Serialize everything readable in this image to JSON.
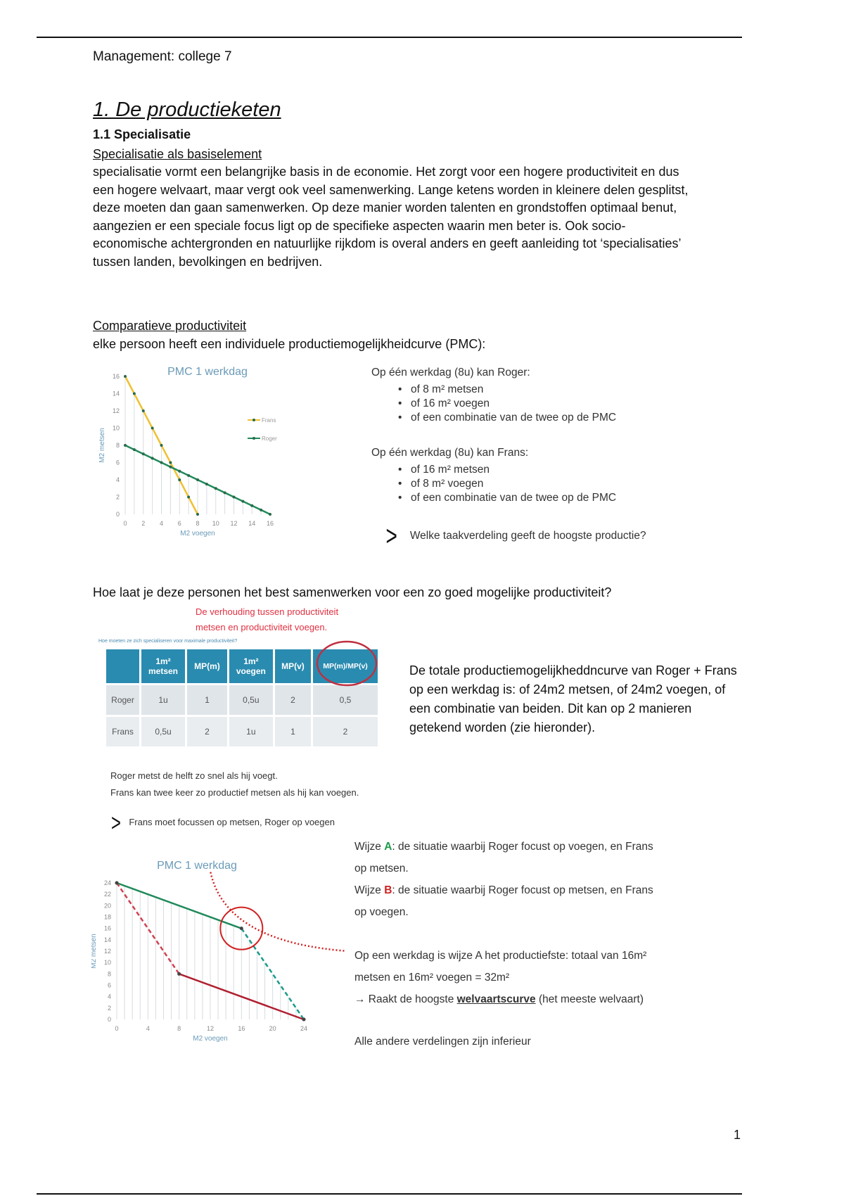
{
  "header": {
    "title": "Management: college 7"
  },
  "section": {
    "title": "1. De productieketen",
    "subtitle": "1.1 Specialisatie"
  },
  "specialisatie": {
    "heading": "Specialisatie als basiselement",
    "body": "specialisatie vormt een belangrijke basis in de economie. Het zorgt voor een hogere productiviteit en dus een hogere welvaart, maar vergt ook veel samenwerking. Lange ketens worden in kleinere delen gesplitst, deze moeten dan gaan samenwerken. Op deze manier worden talenten en grondstoffen optimaal benut, aangezien er een speciale focus ligt op de specifieke aspecten waarin men beter is. Ook socio-economische achtergronden en natuurlijke rijkdom is overal anders en geeft aanleiding tot ‘specialisaties’ tussen landen, bevolkingen en bedrijven."
  },
  "comparatief": {
    "heading": "Comparatieve productiviteit",
    "intro": "elke persoon heeft een individuele productiemogelijkheidcurve (PMC):",
    "roger": {
      "title": "Op één werkdag (8u) kan Roger:",
      "items": [
        "of 8 m² metsen",
        "of 16 m² voegen",
        "of een combinatie van de twee op de PMC"
      ]
    },
    "frans": {
      "title": "Op één werkdag (8u) kan Frans:",
      "items": [
        "of 16 m² metsen",
        "of 8 m² voegen",
        "of een combinatie van de twee op de PMC"
      ]
    },
    "question": "Welke taakverdeling geeft de hoogste productie?"
  },
  "chart_data": [
    {
      "type": "line",
      "title": "PMC 1 werkdag",
      "xlabel": "M2 voegen",
      "ylabel": "M2 metsen",
      "xlim": [
        0,
        16
      ],
      "ylim": [
        0,
        16
      ],
      "xticks": [
        "0",
        "2",
        "4",
        "6",
        "8",
        "10",
        "12",
        "14",
        "16"
      ],
      "yticks": [
        "0",
        "2",
        "4",
        "6",
        "8",
        "10",
        "12",
        "14",
        "16"
      ],
      "grid": "vertical",
      "legend": "right",
      "series": [
        {
          "name": "Frans",
          "color": "#f0c030",
          "points": [
            [
              0,
              16
            ],
            [
              8,
              0
            ]
          ]
        },
        {
          "name": "Roger",
          "color": "#1f8a5a",
          "points": [
            [
              0,
              8
            ],
            [
              16,
              0
            ]
          ]
        }
      ]
    },
    {
      "type": "line",
      "title": "PMC 1 werkdag",
      "xlabel": "M2 voegen",
      "ylabel": "M2 metsen",
      "xlim": [
        0,
        24
      ],
      "ylim": [
        0,
        24
      ],
      "xticks": [
        "0",
        "4",
        "8",
        "12",
        "16",
        "20",
        "24"
      ],
      "yticks": [
        "0",
        "2",
        "4",
        "6",
        "8",
        "10",
        "12",
        "14",
        "16",
        "18",
        "20",
        "22",
        "24"
      ],
      "grid": "vertical",
      "series": [
        {
          "color": "#1f8a5a",
          "points": [
            [
              0,
              24
            ],
            [
              16,
              16
            ],
            [
              24,
              0
            ]
          ]
        },
        {
          "color": "#b02030",
          "points": [
            [
              0,
              24
            ],
            [
              8,
              8
            ],
            [
              24,
              0
            ]
          ]
        }
      ]
    }
  ],
  "samenwerking": {
    "question": "Hoe laat je deze personen het best samenwerken voor een zo goed mogelijke productiviteit?",
    "red_note_1": "De verhouding tussen productiviteit",
    "red_note_2": "metsen en productiviteit voegen.",
    "table_caption": "Hoe moeten ze zich specialiseren voor maximale productiviteit?",
    "table": {
      "headers": [
        "",
        "1m² metsen",
        "MP(m)",
        "1m² voegen",
        "MP(v)",
        "MP(m)/MP(v)"
      ],
      "rows": [
        [
          "Roger",
          "1u",
          "1",
          "0,5u",
          "2",
          "0,5"
        ],
        [
          "Frans",
          "0,5u",
          "2",
          "1u",
          "1",
          "2"
        ]
      ]
    },
    "total_text": "De totale productiemogelijkheddncurve van Roger + Frans op een werkdag is: of 24m2 metsen, of 24m2 voegen, of een combinatie van beiden. Dit kan op 2 manieren getekend worden (zie hieronder).",
    "note_1": "Roger metst de helft zo snel als hij voegt.",
    "note_2": "Frans kan twee keer zo productief metsen als hij kan voegen.",
    "conclusion": "Frans moet focussen op metsen, Roger op voegen"
  },
  "wijze": {
    "a_prefix": "Wijze ",
    "a_letter": "A",
    "a_text": ": de situatie waarbij Roger focust op voegen, en Frans op metsen.",
    "b_prefix": "Wijze ",
    "b_letter": "B",
    "b_text": ": de situatie waarbij Roger focust op metsen, en Frans op voegen.",
    "a_color": "#1f9a4a",
    "b_color": "#d02020",
    "result": "Op een werkdag is wijze A het productiefste: totaal van 16m² metsen en 16m² voegen = 32m²",
    "arrow_prefix": "→ Raakt de hoogste ",
    "arrow_link": "welvaartscurve",
    "arrow_suffix": " (het meeste welvaart)",
    "inferior": "Alle andere verdelingen zijn inferieur"
  },
  "footer": {
    "page_number": "1"
  }
}
